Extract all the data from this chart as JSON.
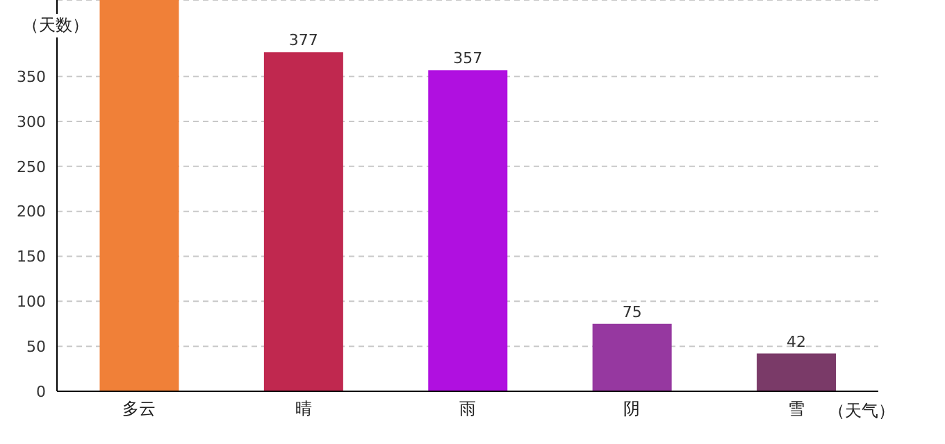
{
  "chart_data": {
    "type": "bar",
    "xlabel": "（天气）",
    "ylabel": "（天数）",
    "categories": [
      "多云",
      "晴",
      "雨",
      "阴",
      "雪"
    ],
    "values": [
      435,
      377,
      357,
      75,
      42
    ],
    "colors": [
      "#f08038",
      "#c0284f",
      "#b010e0",
      "#9638a0",
      "#7a3a68"
    ],
    "value_labels": [
      null,
      "377",
      "357",
      "75",
      "42"
    ],
    "ylim": [
      0,
      435
    ],
    "yticks": [
      0,
      50,
      100,
      150,
      200,
      250,
      300,
      350
    ],
    "grid": "y"
  }
}
